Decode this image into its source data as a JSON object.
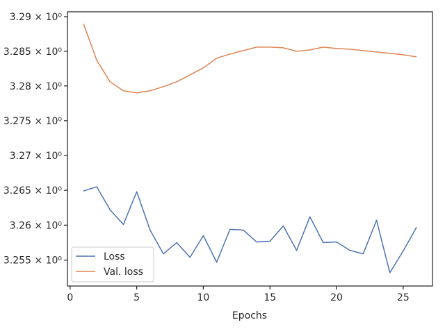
{
  "chart_data": {
    "type": "line",
    "title": "",
    "xlabel": "Epochs",
    "ylabel": "",
    "xlim": [
      -0.2,
      27.2
    ],
    "ylim": [
      3.2513,
      3.2907
    ],
    "x_ticks": [
      0,
      5,
      10,
      15,
      20,
      25
    ],
    "x_tick_labels": [
      "0",
      "5",
      "10",
      "15",
      "20",
      "25"
    ],
    "y_ticks": [
      3.255,
      3.26,
      3.265,
      3.27,
      3.275,
      3.28,
      3.285,
      3.29
    ],
    "y_tick_labels": [
      "3.255 × 10⁰",
      "3.26 × 10⁰",
      "3.265 × 10⁰",
      "3.27 × 10⁰",
      "3.275 × 10⁰",
      "3.28 × 10⁰",
      "3.285 × 10⁰",
      "3.29 × 10⁰"
    ],
    "y_scale": "log",
    "grid": false,
    "legend_position": "lower-left",
    "x": [
      1,
      2,
      3,
      4,
      5,
      6,
      7,
      8,
      9,
      10,
      11,
      12,
      13,
      14,
      15,
      16,
      17,
      18,
      19,
      20,
      21,
      22,
      23,
      24,
      25,
      26
    ],
    "series": [
      {
        "name": "Loss",
        "color": "#4c72b0",
        "values": [
          3.2649,
          3.2655,
          3.2622,
          3.2601,
          3.2648,
          3.2593,
          3.2559,
          3.2575,
          3.2554,
          3.2585,
          3.2547,
          3.2594,
          3.2593,
          3.2576,
          3.2577,
          3.2599,
          3.2564,
          3.2612,
          3.2575,
          3.2576,
          3.2564,
          3.2559,
          3.2607,
          3.2532,
          3.2563,
          3.2597
        ]
      },
      {
        "name": "Val. loss",
        "color": "#dd8452",
        "values": [
          3.289,
          3.2837,
          3.2806,
          3.2793,
          3.279,
          3.2793,
          3.2799,
          3.2806,
          3.2816,
          3.2826,
          3.284,
          3.2846,
          3.2851,
          3.2856,
          3.2856,
          3.2855,
          3.285,
          3.2852,
          3.2856,
          3.2854,
          3.2853,
          3.2851,
          3.2849,
          3.2847,
          3.2845,
          3.2842
        ]
      }
    ]
  }
}
